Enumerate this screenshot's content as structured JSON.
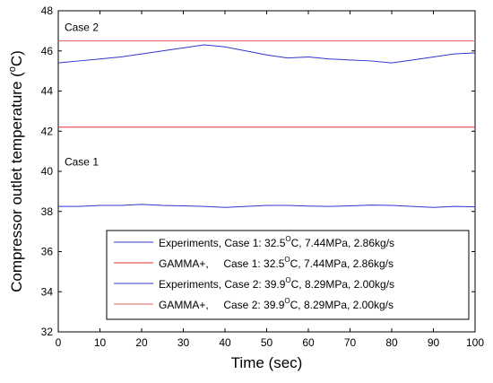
{
  "chart_data": {
    "type": "line",
    "xlabel": "Time (sec)",
    "ylabel_main": "Compressor outlet temperature (",
    "ylabel_sup": "o",
    "ylabel_tail": "C)",
    "xlim": [
      0,
      100
    ],
    "ylim": [
      32,
      48
    ],
    "xticks": [
      0,
      10,
      20,
      30,
      40,
      50,
      60,
      70,
      80,
      90,
      100
    ],
    "yticks": [
      32,
      34,
      36,
      38,
      40,
      42,
      44,
      46,
      48
    ],
    "grid": false,
    "annotations": [
      {
        "text": "Case 2",
        "x": 1.5,
        "y": 47.0
      },
      {
        "text": "Case 1",
        "x": 1.5,
        "y": 40.3
      }
    ],
    "legend": {
      "placement": "bottom-right",
      "entries": [
        {
          "prefix": "Experiments, Case 1: 32.5",
          "sup": "O",
          "suffix": "C, 7.44MPa, 2.86kg/s",
          "color": "#3333cc"
        },
        {
          "prefix": "GAMMA+,     Case 1: 32.5",
          "sup": "O",
          "suffix": "C, 7.44MPa, 2.86kg/s",
          "color": "#e03030"
        },
        {
          "prefix": "Experiments, Case 2: 39.9",
          "sup": "O",
          "suffix": "C, 8.29MPa, 2.00kg/s",
          "color": "#3333cc"
        },
        {
          "prefix": "GAMMA+,     Case 2: 39.9",
          "sup": "O",
          "suffix": "C, 8.29MPa, 2.00kg/s",
          "color": "#e06060"
        }
      ]
    },
    "series": [
      {
        "color": "#3333cc",
        "x": [
          0,
          5,
          10,
          15,
          20,
          25,
          30,
          35,
          40,
          45,
          50,
          55,
          60,
          65,
          70,
          75,
          80,
          85,
          90,
          95,
          100
        ],
        "y": [
          38.25,
          38.25,
          38.3,
          38.3,
          38.35,
          38.3,
          38.28,
          38.25,
          38.2,
          38.25,
          38.3,
          38.3,
          38.27,
          38.25,
          38.28,
          38.32,
          38.3,
          38.25,
          38.2,
          38.25,
          38.23
        ]
      },
      {
        "color": "#e03030",
        "x": [
          0,
          100
        ],
        "y": [
          42.2,
          42.2
        ]
      },
      {
        "color": "#3333cc",
        "x": [
          0,
          5,
          10,
          15,
          20,
          25,
          30,
          35,
          40,
          45,
          50,
          55,
          60,
          65,
          70,
          75,
          80,
          85,
          90,
          95,
          100
        ],
        "y": [
          45.4,
          45.5,
          45.6,
          45.7,
          45.85,
          46.0,
          46.15,
          46.3,
          46.2,
          46.0,
          45.8,
          45.65,
          45.7,
          45.6,
          45.55,
          45.5,
          45.4,
          45.55,
          45.7,
          45.85,
          45.9
        ]
      },
      {
        "color": "#e06060",
        "x": [
          0,
          100
        ],
        "y": [
          46.5,
          46.5
        ]
      }
    ]
  }
}
